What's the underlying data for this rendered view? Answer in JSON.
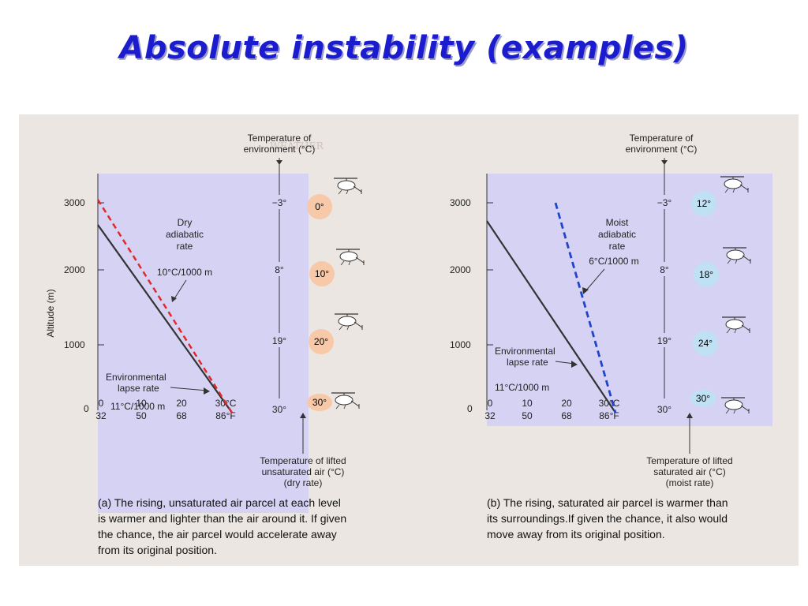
{
  "title": "Absolute instability (examples)",
  "colors": {
    "title": "#1c1ccf",
    "panel_bg": "#d6d2f4",
    "dry_line": "#e02a2a",
    "moist_line": "#2244c8",
    "env_line": "#333333",
    "dry_balloon": "#f7c9a8",
    "moist_balloon": "#bfe1f3"
  },
  "panel_a": {
    "y_axis_label": "Altitude (m)",
    "alt_ticks": [
      "3000",
      "2000",
      "1000",
      "0"
    ],
    "temp_ticks_c": [
      "0",
      "10",
      "20",
      "30°C"
    ],
    "temp_ticks_f": [
      "32",
      "50",
      "68",
      "86°F"
    ],
    "env_temp_header_1": "Temperature of",
    "env_temp_header_2": "environment (°C)",
    "env_temps": [
      "−3°",
      "8°",
      "19°",
      "30°"
    ],
    "parcel_temps": [
      "0°",
      "10°",
      "20°",
      "30°"
    ],
    "rate_label_1": "Dry",
    "rate_label_2": "adiabatic",
    "rate_label_3": "rate",
    "rate_value": "10°C/1000 m",
    "env_label_1": "Environmental",
    "env_label_2": "lapse rate",
    "env_value": "11°C/1000 m",
    "parcel_header_1": "Temperature of lifted",
    "parcel_header_2": "unsaturated air (°C)",
    "parcel_header_3": "(dry rate)",
    "caption_1": "(a)  The rising, unsaturated air parcel at each level",
    "caption_2": "is warmer and lighter than the air around it. If given",
    "caption_3": "the chance, the air parcel would accelerate away",
    "caption_4": "from its original position."
  },
  "panel_b": {
    "alt_ticks": [
      "3000",
      "2000",
      "1000",
      "0"
    ],
    "temp_ticks_c": [
      "0",
      "10",
      "20",
      "30°C"
    ],
    "temp_ticks_f": [
      "32",
      "50",
      "68",
      "86°F"
    ],
    "env_temp_header_1": "Temperature of",
    "env_temp_header_2": "environment (°C)",
    "env_temps": [
      "−3°",
      "8°",
      "19°",
      "30°"
    ],
    "parcel_temps": [
      "12°",
      "18°",
      "24°",
      "30°"
    ],
    "rate_label_1": "Moist",
    "rate_label_2": "adiabatic",
    "rate_label_3": "rate",
    "rate_value": "6°C/1000 m",
    "env_label_1": "Environmental",
    "env_label_2": "lapse rate",
    "env_value": "11°C/1000 m",
    "parcel_header_1": "Temperature of lifted",
    "parcel_header_2": "saturated air (°C)",
    "parcel_header_3": "(moist rate)",
    "caption_1": "(b)  The rising, saturated air parcel is warmer than",
    "caption_2": "its surroundings.If given the chance, it also would",
    "caption_3": "move away from its original position."
  }
}
